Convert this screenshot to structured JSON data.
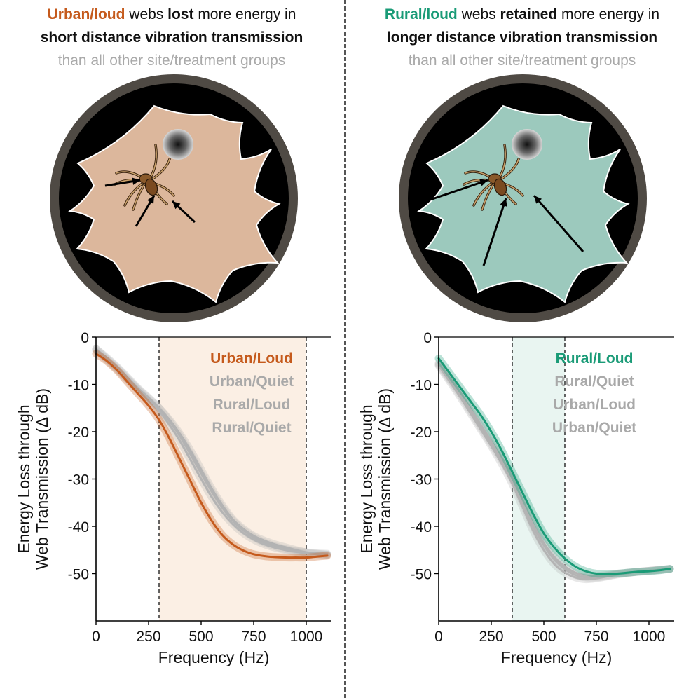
{
  "colors": {
    "urban_accent": "#c55a1c",
    "urban_web_fill": "#dcb79c",
    "urban_band_fill": "#fbefe4",
    "rural_accent": "#1a9b77",
    "rural_web_fill": "#9cc9bd",
    "rural_band_fill": "#e9f5f1",
    "comparison_gray": "#b4b4b4",
    "dish_rim": "#4f4a44",
    "dish_inside": "#000000"
  },
  "left_panel": {
    "caption": {
      "group": "Urban/loud",
      "text_1": " webs ",
      "emphasis": "lost",
      "text_2": " more energy in",
      "line_2": "short distance vibration transmission",
      "line_3": "than all other site/treatment groups"
    },
    "illustration": {
      "web_color": "urban_web_fill",
      "spider_icon": "spider-icon",
      "retreat_icon": "retreat-hole-icon",
      "arrows": "short"
    },
    "legend": [
      "Urban/Loud",
      "Urban/Quiet",
      "Rural/Loud",
      "Rural/Quiet"
    ]
  },
  "right_panel": {
    "caption": {
      "group": "Rural/loud",
      "text_1": " webs ",
      "emphasis": "retained",
      "text_2": " more energy in",
      "line_2": "longer distance vibration transmission",
      "line_3": "than all other site/treatment groups"
    },
    "illustration": {
      "web_color": "rural_web_fill",
      "spider_icon": "spider-icon",
      "retreat_icon": "retreat-hole-icon",
      "arrows": "long"
    },
    "legend": [
      "Rural/Loud",
      "Rural/Quiet",
      "Urban/Loud",
      "Urban/Quiet"
    ]
  },
  "chart_data": [
    {
      "type": "line",
      "ylabel_line_1": "Energy Loss through",
      "ylabel_line_2": "Web Transmission (Δ dB)",
      "xlabel": "Frequency (Hz)",
      "xlim": [
        0,
        1120
      ],
      "ylim": [
        -60,
        0
      ],
      "xticks": [
        0,
        250,
        500,
        750,
        1000
      ],
      "yticks": [
        0,
        -10,
        -20,
        -30,
        -40,
        -50
      ],
      "highlight_band": [
        300,
        1000
      ],
      "highlight_color": "urban_band_fill",
      "series": [
        {
          "name": "Urban/Loud",
          "highlight": true,
          "color": "urban_accent",
          "x": [
            0,
            50,
            100,
            150,
            200,
            250,
            300,
            350,
            400,
            450,
            500,
            550,
            600,
            650,
            700,
            750,
            800,
            850,
            900,
            950,
            1000,
            1050,
            1100
          ],
          "y": [
            -3.5,
            -5,
            -7,
            -9.5,
            -12,
            -14.5,
            -17.5,
            -21.5,
            -26,
            -30.5,
            -35,
            -38.8,
            -41.8,
            -43.8,
            -45.1,
            -45.9,
            -46.3,
            -46.5,
            -46.6,
            -46.6,
            -46.6,
            -46.4,
            -46.2
          ]
        },
        {
          "name": "Urban/Quiet",
          "highlight": false,
          "color": "comparison_gray",
          "x": [
            0,
            50,
            100,
            150,
            200,
            250,
            300,
            350,
            400,
            450,
            500,
            550,
            600,
            650,
            700,
            750,
            800,
            850,
            900,
            950,
            1000,
            1050,
            1100
          ],
          "y": [
            -2.5,
            -4.5,
            -6.5,
            -8.8,
            -11,
            -13,
            -15,
            -17.5,
            -20.5,
            -24,
            -28,
            -32,
            -35.5,
            -38.5,
            -40.5,
            -42,
            -43,
            -43.8,
            -44.4,
            -45,
            -45.5,
            -45.8,
            -46
          ]
        },
        {
          "name": "Rural/Loud",
          "highlight": false,
          "color": "comparison_gray",
          "x": [
            0,
            50,
            100,
            150,
            200,
            250,
            300,
            350,
            400,
            450,
            500,
            550,
            600,
            650,
            700,
            750,
            800,
            850,
            900,
            950,
            1000,
            1050,
            1100
          ],
          "y": [
            -2.5,
            -4.3,
            -6.3,
            -8.5,
            -10.8,
            -12.8,
            -15,
            -17.8,
            -21,
            -24.8,
            -28.8,
            -32.6,
            -36,
            -38.8,
            -40.8,
            -42.3,
            -43.4,
            -44.2,
            -44.8,
            -45.2,
            -45.5,
            -45.7,
            -45.8
          ]
        },
        {
          "name": "Rural/Quiet",
          "highlight": false,
          "color": "comparison_gray",
          "x": [
            0,
            50,
            100,
            150,
            200,
            250,
            300,
            350,
            400,
            450,
            500,
            550,
            600,
            650,
            700,
            750,
            800,
            850,
            900,
            950,
            1000,
            1050,
            1100
          ],
          "y": [
            -2.8,
            -4.7,
            -6.8,
            -9,
            -11.2,
            -13.4,
            -15.6,
            -18.6,
            -22,
            -26,
            -30,
            -33.8,
            -37,
            -39.5,
            -41.4,
            -42.8,
            -43.8,
            -44.5,
            -45,
            -45.4,
            -45.7,
            -45.9,
            -46
          ]
        }
      ]
    },
    {
      "type": "line",
      "ylabel_line_1": "Energy Loss through",
      "ylabel_line_2": "Web Transmission (Δ dB)",
      "xlabel": "Frequency (Hz)",
      "xlim": [
        0,
        1120
      ],
      "ylim": [
        -60,
        0
      ],
      "xticks": [
        0,
        250,
        500,
        750,
        1000
      ],
      "yticks": [
        0,
        -10,
        -20,
        -30,
        -40,
        -50
      ],
      "highlight_band": [
        350,
        600
      ],
      "highlight_color": "rural_band_fill",
      "series": [
        {
          "name": "Rural/Loud",
          "highlight": true,
          "color": "rural_accent",
          "x": [
            0,
            50,
            100,
            150,
            200,
            250,
            300,
            350,
            400,
            450,
            500,
            550,
            600,
            650,
            700,
            750,
            800,
            850,
            900,
            950,
            1000,
            1050,
            1100
          ],
          "y": [
            -4.5,
            -7.5,
            -10.5,
            -13.5,
            -16.5,
            -20,
            -24,
            -28.5,
            -33,
            -37.5,
            -41.5,
            -44.5,
            -46.8,
            -48.5,
            -49.5,
            -50,
            -50,
            -50,
            -49.8,
            -49.6,
            -49.5,
            -49.3,
            -49
          ]
        },
        {
          "name": "Rural/Quiet",
          "highlight": false,
          "color": "comparison_gray",
          "x": [
            0,
            50,
            100,
            150,
            200,
            250,
            300,
            350,
            400,
            450,
            500,
            550,
            600,
            650,
            700,
            750,
            800,
            850,
            900,
            950,
            1000,
            1050,
            1100
          ],
          "y": [
            -5.5,
            -8.5,
            -11.5,
            -15,
            -18.5,
            -22,
            -25.5,
            -29.5,
            -34.5,
            -39.5,
            -43.5,
            -46.5,
            -48.5,
            -49.8,
            -50.4,
            -50.5,
            -50.3,
            -50,
            -49.8,
            -49.6,
            -49.4,
            -49.2,
            -49
          ]
        },
        {
          "name": "Urban/Loud",
          "highlight": false,
          "color": "comparison_gray",
          "x": [
            0,
            50,
            100,
            150,
            200,
            250,
            300,
            350,
            400,
            450,
            500,
            550,
            600,
            650,
            700,
            750,
            800,
            850,
            900,
            950,
            1000,
            1050,
            1100
          ],
          "y": [
            -5.8,
            -8.8,
            -12,
            -15.5,
            -19,
            -22.5,
            -26,
            -30,
            -35,
            -40,
            -44,
            -47,
            -49,
            -50.3,
            -50.8,
            -50.8,
            -50.5,
            -50.1,
            -49.8,
            -49.6,
            -49.4,
            -49.2,
            -49
          ]
        },
        {
          "name": "Urban/Quiet",
          "highlight": false,
          "color": "comparison_gray",
          "x": [
            0,
            50,
            100,
            150,
            200,
            250,
            300,
            350,
            400,
            450,
            500,
            550,
            600,
            650,
            700,
            750,
            800,
            850,
            900,
            950,
            1000,
            1050,
            1100
          ],
          "y": [
            -6,
            -9.2,
            -12.5,
            -16,
            -19.5,
            -23,
            -26.8,
            -31,
            -36,
            -41,
            -45,
            -48,
            -49.8,
            -50.8,
            -51.2,
            -51,
            -50.6,
            -50.2,
            -49.9,
            -49.6,
            -49.4,
            -49.2,
            -49
          ]
        }
      ]
    }
  ]
}
